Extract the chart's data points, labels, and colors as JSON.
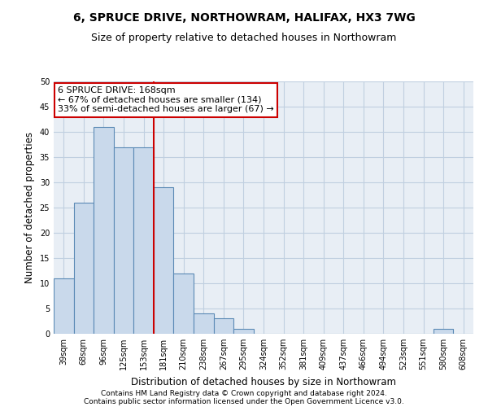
{
  "title1": "6, SPRUCE DRIVE, NORTHOWRAM, HALIFAX, HX3 7WG",
  "title2": "Size of property relative to detached houses in Northowram",
  "xlabel": "Distribution of detached houses by size in Northowram",
  "ylabel": "Number of detached properties",
  "footer1": "Contains HM Land Registry data © Crown copyright and database right 2024.",
  "footer2": "Contains public sector information licensed under the Open Government Licence v3.0.",
  "bin_labels": [
    "39sqm",
    "68sqm",
    "96sqm",
    "125sqm",
    "153sqm",
    "181sqm",
    "210sqm",
    "238sqm",
    "267sqm",
    "295sqm",
    "324sqm",
    "352sqm",
    "381sqm",
    "409sqm",
    "437sqm",
    "466sqm",
    "494sqm",
    "523sqm",
    "551sqm",
    "580sqm",
    "608sqm"
  ],
  "bar_values": [
    11,
    26,
    41,
    37,
    37,
    29,
    12,
    4,
    3,
    1,
    0,
    0,
    0,
    0,
    0,
    0,
    0,
    0,
    0,
    1,
    0
  ],
  "bar_color": "#c9d9eb",
  "bar_edge_color": "#5b8ab5",
  "grid_color": "#c0cfe0",
  "background_color": "#e8eef5",
  "vline_x": 4.5,
  "vline_color": "#cc0000",
  "annotation_text": "6 SPRUCE DRIVE: 168sqm\n← 67% of detached houses are smaller (134)\n33% of semi-detached houses are larger (67) →",
  "annotation_box_color": "#ffffff",
  "annotation_box_edge": "#cc0000",
  "ylim": [
    0,
    50
  ],
  "yticks": [
    0,
    5,
    10,
    15,
    20,
    25,
    30,
    35,
    40,
    45,
    50
  ],
  "title_fontsize": 10,
  "subtitle_fontsize": 9,
  "axis_label_fontsize": 8.5,
  "tick_fontsize": 7,
  "annotation_fontsize": 8,
  "footer_fontsize": 6.5
}
